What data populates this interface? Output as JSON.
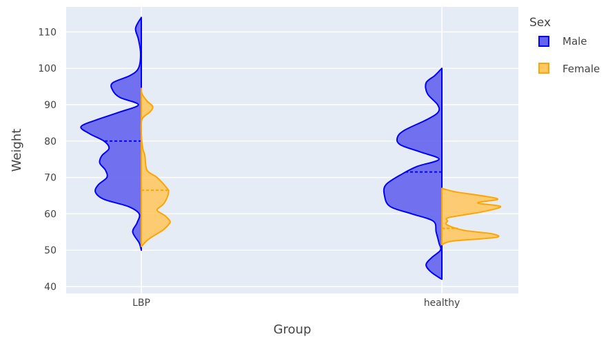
{
  "chart_data": {
    "type": "violin",
    "xlabel": "Group",
    "ylabel": "Weight",
    "ylim": [
      40,
      115
    ],
    "yticks": [
      40,
      50,
      60,
      70,
      80,
      90,
      100,
      110
    ],
    "categories": [
      "LBP",
      "healthy"
    ],
    "legend_title": "Sex",
    "legend_position": "right",
    "grid": true,
    "plot_background": "#e5ecf6",
    "series": [
      {
        "name": "Male",
        "side": "negative",
        "color": "#0000ff",
        "fill": "#6464f0",
        "groups": [
          {
            "category": "LBP",
            "range": [
              50,
              114
            ],
            "mean": 80,
            "profile": [
              [
                50,
                0
              ],
              [
                52,
                0.03
              ],
              [
                55,
                0.12
              ],
              [
                57.5,
                0.06
              ],
              [
                60,
                0.03
              ],
              [
                62,
                0.18
              ],
              [
                64,
                0.52
              ],
              [
                66,
                0.64
              ],
              [
                68,
                0.6
              ],
              [
                70,
                0.48
              ],
              [
                72,
                0.5
              ],
              [
                74,
                0.58
              ],
              [
                76,
                0.55
              ],
              [
                78,
                0.45
              ],
              [
                80,
                0.52
              ],
              [
                82,
                0.72
              ],
              [
                84,
                0.84
              ],
              [
                86,
                0.6
              ],
              [
                88,
                0.3
              ],
              [
                90,
                0.04
              ],
              [
                92,
                0.3
              ],
              [
                94,
                0.4
              ],
              [
                96,
                0.4
              ],
              [
                98,
                0.16
              ],
              [
                100,
                0.04
              ],
              [
                104,
                0.01
              ],
              [
                108,
                0.04
              ],
              [
                111,
                0.08
              ],
              [
                114,
                0
              ]
            ]
          },
          {
            "category": "healthy",
            "range": [
              42,
              100
            ],
            "mean": 71.5,
            "profile": [
              [
                42,
                0
              ],
              [
                44,
                0.15
              ],
              [
                46,
                0.22
              ],
              [
                48,
                0.14
              ],
              [
                50,
                0.02
              ],
              [
                52,
                0.04
              ],
              [
                55,
                0.08
              ],
              [
                58,
                0.12
              ],
              [
                60,
                0.42
              ],
              [
                62,
                0.72
              ],
              [
                65,
                0.8
              ],
              [
                68,
                0.78
              ],
              [
                71,
                0.55
              ],
              [
                73,
                0.35
              ],
              [
                75,
                0.04
              ],
              [
                77,
                0.3
              ],
              [
                79,
                0.58
              ],
              [
                81,
                0.62
              ],
              [
                83,
                0.52
              ],
              [
                86,
                0.2
              ],
              [
                88,
                0.05
              ],
              [
                90,
                0.06
              ],
              [
                93,
                0.2
              ],
              [
                96,
                0.22
              ],
              [
                98,
                0.1
              ],
              [
                100,
                0
              ]
            ]
          }
        ]
      },
      {
        "name": "Female",
        "side": "positive",
        "color": "#ffa500",
        "fill": "#ffc864",
        "groups": [
          {
            "category": "LBP",
            "range": [
              51,
              94.5
            ],
            "mean": 66.5,
            "profile": [
              [
                51,
                0
              ],
              [
                53,
                0.1
              ],
              [
                55.5,
                0.3
              ],
              [
                57,
                0.38
              ],
              [
                58,
                0.4
              ],
              [
                59.5,
                0.33
              ],
              [
                61,
                0.22
              ],
              [
                62.5,
                0.3
              ],
              [
                64,
                0.35
              ],
              [
                66,
                0.38
              ],
              [
                67,
                0.36
              ],
              [
                70,
                0.22
              ],
              [
                72,
                0.08
              ],
              [
                76,
                0.05
              ],
              [
                78,
                0.02
              ],
              [
                82,
                0
              ],
              [
                86,
                0.01
              ],
              [
                88,
                0.12
              ],
              [
                89.5,
                0.16
              ],
              [
                91,
                0.08
              ],
              [
                93,
                0.01
              ],
              [
                94.5,
                0
              ]
            ]
          },
          {
            "category": "healthy",
            "range": [
              51.5,
              67
            ],
            "mean": 56,
            "profile": [
              [
                51.5,
                0
              ],
              [
                52.5,
                0.15
              ],
              [
                53.5,
                0.75
              ],
              [
                54.5,
                0.7
              ],
              [
                55.5,
                0.3
              ],
              [
                57,
                0.07
              ],
              [
                58,
                0.08
              ],
              [
                59,
                0.1
              ],
              [
                60.5,
                0.55
              ],
              [
                62,
                0.82
              ],
              [
                63,
                0.5
              ],
              [
                64,
                0.78
              ],
              [
                65,
                0.55
              ],
              [
                66,
                0.2
              ],
              [
                67,
                0
              ]
            ]
          }
        ]
      }
    ]
  }
}
